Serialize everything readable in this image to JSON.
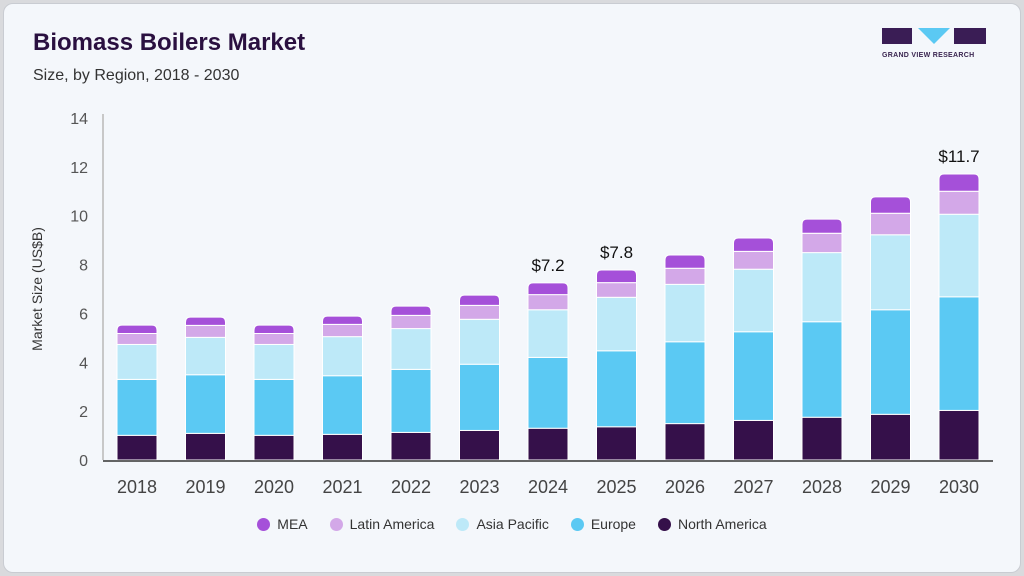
{
  "header": {
    "title": "Biomass Boilers Market",
    "subtitle": "Size, by Region, 2018 - 2030"
  },
  "logo": {
    "text": "GRAND VIEW RESEARCH"
  },
  "chart_data": {
    "type": "bar",
    "stacked": true,
    "title": "Biomass Boilers Market",
    "subtitle": "Size, by Region, 2018 - 2030",
    "xlabel": "",
    "ylabel": "Market Size (US$B)",
    "ylim": [
      0,
      14
    ],
    "yticks": [
      0,
      2,
      4,
      6,
      8,
      10,
      12,
      14
    ],
    "grid": false,
    "legend_position": "bottom",
    "categories": [
      "2018",
      "2019",
      "2020",
      "2021",
      "2022",
      "2023",
      "2024",
      "2025",
      "2026",
      "2027",
      "2028",
      "2029",
      "2030"
    ],
    "series": [
      {
        "name": "North America",
        "color": "#35104a",
        "values": [
          1.01,
          1.09,
          1.01,
          1.05,
          1.13,
          1.21,
          1.3,
          1.36,
          1.49,
          1.62,
          1.75,
          1.87,
          2.03
        ]
      },
      {
        "name": "Europe",
        "color": "#5bc9f3",
        "values": [
          2.29,
          2.4,
          2.29,
          2.4,
          2.58,
          2.71,
          2.9,
          3.11,
          3.35,
          3.63,
          3.91,
          4.28,
          4.65
        ]
      },
      {
        "name": "Asia Pacific",
        "color": "#bde9f8",
        "values": [
          1.43,
          1.53,
          1.43,
          1.6,
          1.67,
          1.84,
          1.95,
          2.19,
          2.35,
          2.56,
          2.83,
          3.07,
          3.38
        ]
      },
      {
        "name": "Latin America",
        "color": "#d3a8e8",
        "values": [
          0.45,
          0.49,
          0.45,
          0.5,
          0.54,
          0.57,
          0.62,
          0.6,
          0.66,
          0.73,
          0.79,
          0.88,
          0.94
        ]
      },
      {
        "name": "MEA",
        "color": "#a550d9",
        "values": [
          0.34,
          0.34,
          0.34,
          0.34,
          0.38,
          0.42,
          0.48,
          0.52,
          0.54,
          0.55,
          0.58,
          0.67,
          0.71
        ]
      }
    ],
    "annotations": [
      {
        "category": "2024",
        "label": "$7.2"
      },
      {
        "category": "2025",
        "label": "$7.8"
      },
      {
        "category": "2030",
        "label": "$11.7"
      }
    ],
    "legend_order": [
      "MEA",
      "Latin America",
      "Asia Pacific",
      "Europe",
      "North America"
    ]
  }
}
